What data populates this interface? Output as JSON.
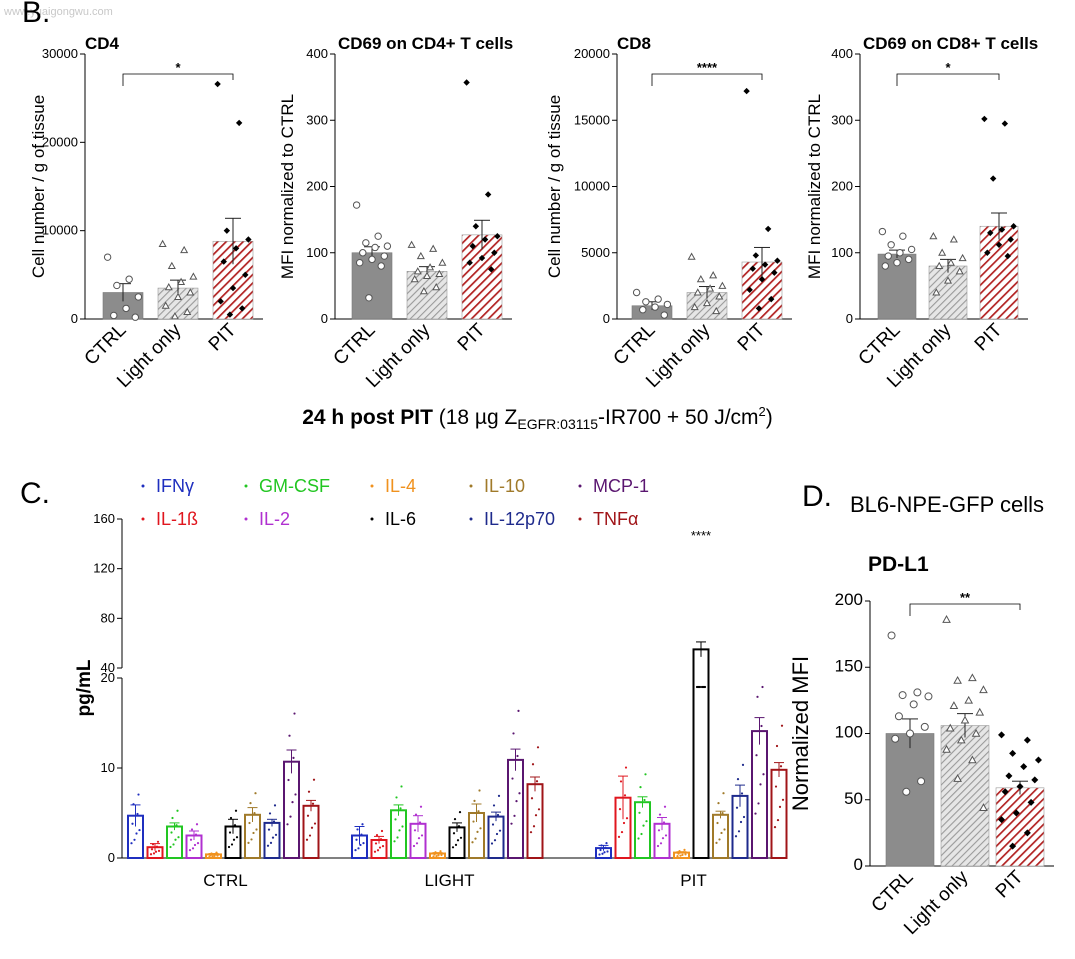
{
  "watermark": "www.yuaigongwu.com",
  "panels": {
    "B": "B.",
    "C": "C.",
    "D": "D."
  },
  "caption": {
    "bold": "24 h post PIT",
    "pre": " (18 µg Z",
    "sub": "EGFR:03115",
    "mid": "-IR700 + 50 J/cm",
    "sup": "2",
    "post": ")"
  },
  "panel_d_subtitle": "BL6-NPE-GFP cells",
  "colors": {
    "ctrl_gray": "#8c8c8c",
    "light_hatch": "#b5b5b5",
    "pit_red": "#b22222",
    "IFNγ": "#1f2fbf",
    "IL-1ß": "#e0161e",
    "GM-CSF": "#22c622",
    "IL-2": "#b030d0",
    "IL-4": "#f0921e",
    "IL-6": "#000000",
    "IL-10": "#a07a2a",
    "IL-12p70": "#1e2a8c",
    "MCP-1": "#5a1670",
    "TNFα": "#a01418"
  },
  "chart_data": [
    {
      "type": "bar",
      "title": "CD4",
      "ylabel": "Cell number / g of tissue",
      "categories": [
        "CTRL",
        "Light only",
        "PIT"
      ],
      "values": [
        3000,
        3500,
        8800
      ],
      "errors": [
        1000,
        900,
        2600
      ],
      "ylim": [
        0,
        30000
      ],
      "yticks": [
        0,
        10000,
        20000,
        30000
      ],
      "points": [
        [
          7000,
          4500,
          3800,
          2500,
          1200,
          400,
          200
        ],
        [
          8500,
          7800,
          6000,
          4800,
          4200,
          3600,
          3000,
          2500,
          1500,
          800,
          300
        ],
        [
          26600,
          22200,
          10000,
          9000,
          8000,
          6500,
          5000,
          3500,
          2000,
          1200,
          500
        ]
      ],
      "significance": [
        {
          "from": 0,
          "to": 2,
          "label": "*"
        }
      ]
    },
    {
      "type": "bar",
      "title": "CD69 on CD4+ T cells",
      "ylabel": "MFI normalized to CTRL",
      "categories": [
        "CTRL",
        "Light only",
        "PIT"
      ],
      "values": [
        100,
        72,
        127
      ],
      "errors": [
        9,
        7,
        22
      ],
      "ylim": [
        0,
        400
      ],
      "yticks": [
        0,
        100,
        200,
        300,
        400
      ],
      "points": [
        [
          172,
          125,
          115,
          110,
          108,
          100,
          95,
          90,
          85,
          80,
          32
        ],
        [
          112,
          106,
          95,
          85,
          78,
          72,
          68,
          65,
          60,
          48,
          42
        ],
        [
          357,
          188,
          140,
          125,
          120,
          110,
          100,
          92,
          85,
          75
        ]
      ],
      "significance": []
    },
    {
      "type": "bar",
      "title": "CD8",
      "ylabel": "Cell number / g of tissue",
      "categories": [
        "CTRL",
        "Light only",
        "PIT"
      ],
      "values": [
        1000,
        2000,
        4300
      ],
      "errors": [
        300,
        450,
        1100
      ],
      "ylim": [
        0,
        20000
      ],
      "yticks": [
        0,
        5000,
        10000,
        15000,
        20000
      ],
      "points": [
        [
          2000,
          1500,
          1300,
          1100,
          900,
          700,
          300
        ],
        [
          4700,
          3300,
          3000,
          2500,
          2300,
          2000,
          1700,
          1200,
          900,
          600
        ],
        [
          17200,
          6800,
          4800,
          4400,
          4100,
          3800,
          3500,
          3000,
          2200,
          1500,
          800
        ]
      ],
      "significance": [
        {
          "from": 0,
          "to": 2,
          "label": "****"
        }
      ]
    },
    {
      "type": "bar",
      "title": "CD69 on CD8+ T cells",
      "ylabel": "MFI normalized to CTRL",
      "categories": [
        "CTRL",
        "Light only",
        "PIT"
      ],
      "values": [
        98,
        80,
        140
      ],
      "errors": [
        6,
        10,
        20
      ],
      "ylim": [
        0,
        400
      ],
      "yticks": [
        0,
        100,
        200,
        300,
        400
      ],
      "points": [
        [
          132,
          125,
          112,
          105,
          100,
          95,
          90,
          85,
          80
        ],
        [
          125,
          120,
          100,
          92,
          85,
          80,
          72,
          58,
          40
        ],
        [
          302,
          295,
          212,
          140,
          135,
          130,
          120,
          112,
          100,
          95
        ]
      ],
      "significance": [
        {
          "from": 0,
          "to": 2,
          "label": "*"
        }
      ]
    },
    {
      "type": "bar",
      "ylabel": "pg/mL",
      "groups": [
        "CTRL",
        "LIGHT",
        "PIT"
      ],
      "legend": [
        "IFNγ",
        "GM-CSF",
        "IL-4",
        "IL-10",
        "MCP-1",
        "IL-1ß",
        "IL-2",
        "IL-6",
        "IL-12p70",
        "TNFα"
      ],
      "analytes": [
        "IFNγ",
        "IL-1ß",
        "GM-CSF",
        "IL-2",
        "IL-4",
        "IL-6",
        "IL-10",
        "IL-12p70",
        "MCP-1",
        "TNFα"
      ],
      "y_lower_ticks": [
        0,
        10,
        20
      ],
      "y_upper_ticks": [
        40,
        80,
        120,
        160
      ],
      "axis_break": [
        20,
        40
      ],
      "series": [
        {
          "name": "CTRL",
          "values": [
            4.7,
            1.2,
            3.5,
            2.5,
            0.4,
            3.5,
            4.8,
            3.9,
            10.7,
            5.8
          ],
          "errors": [
            1.2,
            0.4,
            0.4,
            0.5,
            0.1,
            0.8,
            0.8,
            0.4,
            1.3,
            0.6
          ]
        },
        {
          "name": "LIGHT",
          "values": [
            2.5,
            2.0,
            5.3,
            3.8,
            0.5,
            3.4,
            5.0,
            4.6,
            10.9,
            8.2
          ],
          "errors": [
            1.0,
            0.4,
            0.6,
            0.9,
            0.1,
            0.5,
            1.0,
            0.5,
            1.2,
            0.8
          ]
        },
        {
          "name": "PIT",
          "values": [
            1.1,
            6.7,
            6.2,
            3.8,
            0.6,
            55,
            4.8,
            6.9,
            14.1,
            9.8
          ],
          "errors": [
            0.3,
            2.4,
            0.6,
            0.7,
            0.1,
            6,
            0.4,
            1.2,
            1.5,
            0.8
          ]
        }
      ],
      "annotations": [
        {
          "group": "PIT",
          "analyte": "IL-6",
          "label": "****"
        }
      ]
    },
    {
      "type": "bar",
      "title": "PD-L1",
      "ylabel": "Normalized MFI",
      "categories": [
        "CTRL",
        "Light only",
        "PIT"
      ],
      "values": [
        100,
        106,
        59
      ],
      "errors": [
        11,
        9,
        5
      ],
      "ylim": [
        0,
        200
      ],
      "yticks": [
        0,
        50,
        100,
        150,
        200
      ],
      "points": [
        [
          174,
          131,
          129,
          128,
          122,
          113,
          105,
          100,
          96,
          64,
          56
        ],
        [
          186,
          142,
          140,
          133,
          125,
          121,
          116,
          110,
          104,
          100,
          95,
          88,
          80,
          66,
          44
        ],
        [
          99,
          95,
          85,
          80,
          75,
          68,
          65,
          60,
          56,
          48,
          40,
          35,
          25,
          15
        ]
      ],
      "significance": [
        {
          "from": 0,
          "to": 2,
          "label": "**"
        }
      ]
    }
  ]
}
